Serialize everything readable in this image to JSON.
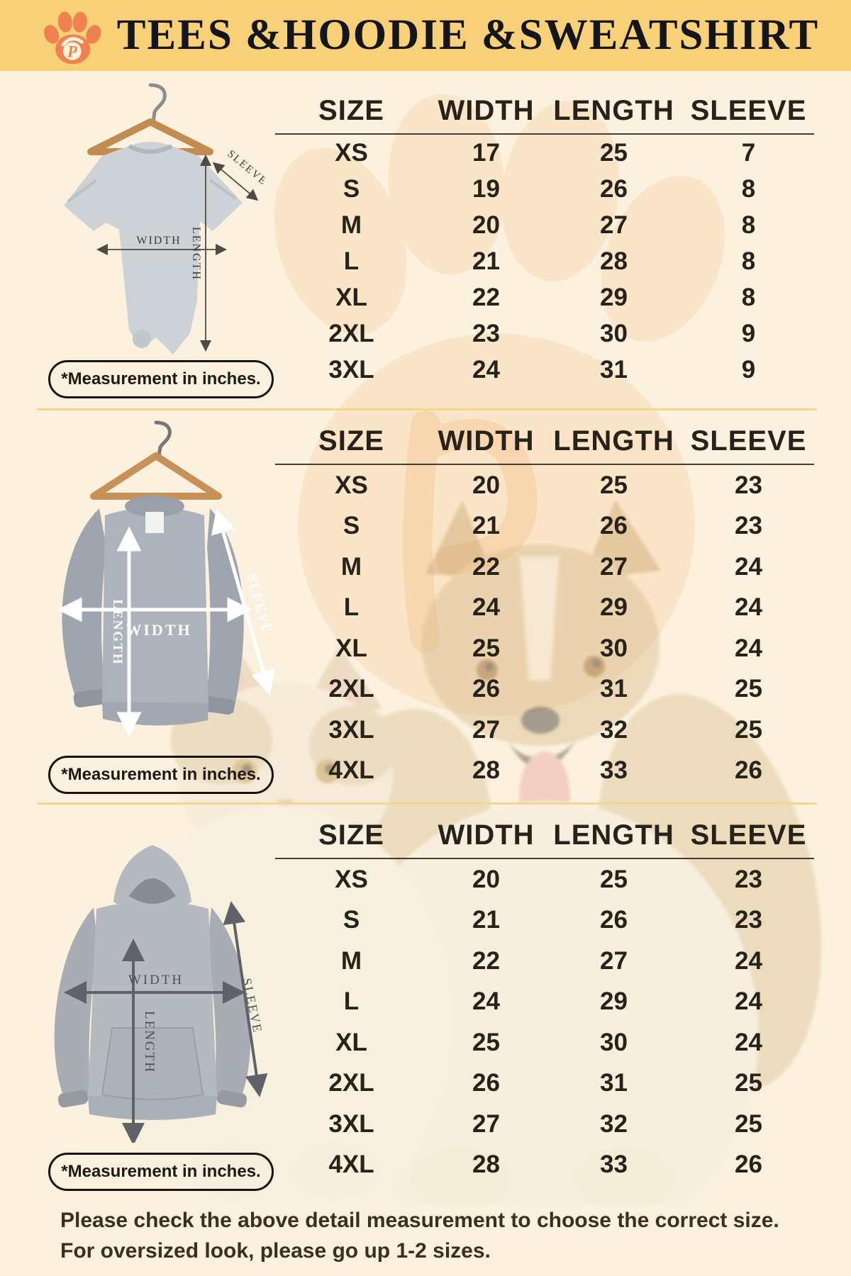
{
  "colors": {
    "bg": "#fbf1de",
    "banner": "#f8d077",
    "divider": "#f2d88f",
    "logo_orange": "#ef8350",
    "text_dark": "#27221a"
  },
  "header": {
    "title": "TEES &HOODIE &SWEATSHIRT"
  },
  "note": {
    "label": "*Measurement in inches."
  },
  "measure_labels": {
    "width": "WIDTH",
    "length": "LENGTH",
    "sleeve": "SLEEVE"
  },
  "sections": [
    {
      "id": "tees",
      "garment": "gray t-shirt on wooden hanger",
      "table": {
        "headers": [
          "SIZE",
          "WIDTH",
          "LENGTH",
          "SLEEVE"
        ],
        "rows": [
          [
            "XS",
            "17",
            "25",
            "7"
          ],
          [
            "S",
            "19",
            "26",
            "8"
          ],
          [
            "M",
            "20",
            "27",
            "8"
          ],
          [
            "L",
            "21",
            "28",
            "8"
          ],
          [
            "XL",
            "22",
            "29",
            "8"
          ],
          [
            "2XL",
            "23",
            "30",
            "9"
          ],
          [
            "3XL",
            "24",
            "31",
            "9"
          ]
        ]
      }
    },
    {
      "id": "sweatshirt",
      "garment": "gray crewneck sweatshirt on wooden hanger",
      "table": {
        "headers": [
          "SIZE",
          "WIDTH",
          "LENGTH",
          "SLEEVE"
        ],
        "rows": [
          [
            "XS",
            "20",
            "25",
            "23"
          ],
          [
            "S",
            "21",
            "26",
            "23"
          ],
          [
            "M",
            "22",
            "27",
            "24"
          ],
          [
            "L",
            "24",
            "29",
            "24"
          ],
          [
            "XL",
            "25",
            "30",
            "24"
          ],
          [
            "2XL",
            "26",
            "31",
            "25"
          ],
          [
            "3XL",
            "27",
            "32",
            "25"
          ],
          [
            "4XL",
            "28",
            "33",
            "26"
          ]
        ]
      }
    },
    {
      "id": "hoodie",
      "garment": "gray pullover hoodie",
      "table": {
        "headers": [
          "SIZE",
          "WIDTH",
          "LENGTH",
          "SLEEVE"
        ],
        "rows": [
          [
            "XS",
            "20",
            "25",
            "23"
          ],
          [
            "S",
            "21",
            "26",
            "23"
          ],
          [
            "M",
            "22",
            "27",
            "24"
          ],
          [
            "L",
            "24",
            "29",
            "24"
          ],
          [
            "XL",
            "25",
            "30",
            "24"
          ],
          [
            "2XL",
            "26",
            "31",
            "25"
          ],
          [
            "3XL",
            "27",
            "32",
            "25"
          ],
          [
            "4XL",
            "28",
            "33",
            "26"
          ]
        ]
      }
    }
  ],
  "footer": {
    "line1": "Please check the above detail measurement to choose the correct size.",
    "line2": "For oversized look, please go up 1-2 sizes."
  }
}
